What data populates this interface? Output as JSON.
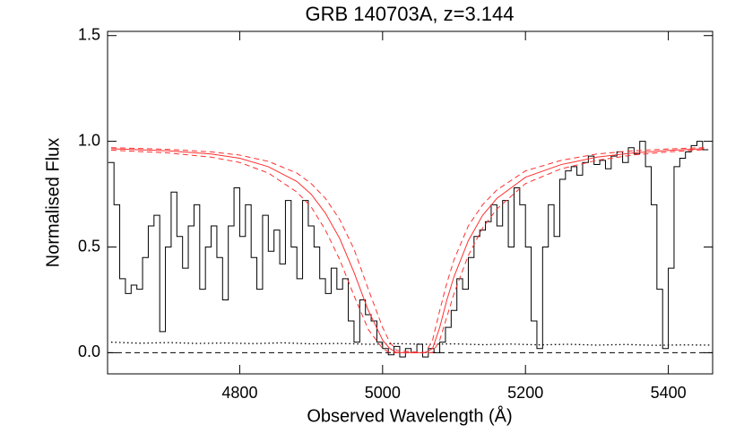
{
  "chart_data": {
    "type": "line",
    "title": "GRB 140703A, z=3.144",
    "x_label": "Observed Wavelength (Å)",
    "y_label": "Normalised Flux",
    "xlim": [
      4615,
      5462
    ],
    "ylim": [
      -0.1,
      1.52
    ],
    "xticks": [
      4800,
      5000,
      5200,
      5400
    ],
    "yticks": [
      {
        "value": 0,
        "label": "0.0"
      },
      0.5,
      {
        "value": 1,
        "label": "1.0"
      },
      1.5
    ],
    "reference_line": {
      "value": 0,
      "style": "dashed",
      "color": "#000000"
    },
    "series": [
      {
        "style": "step",
        "color": "#000000",
        "x": [
          4620,
          4628,
          4636,
          4644,
          4652,
          4660,
          4668,
          4676,
          4684,
          4692,
          4700,
          4708,
          4716,
          4724,
          4732,
          4740,
          4748,
          4756,
          4764,
          4772,
          4780,
          4788,
          4796,
          4804,
          4812,
          4820,
          4828,
          4836,
          4844,
          4852,
          4860,
          4868,
          4876,
          4884,
          4892,
          4900,
          4908,
          4916,
          4924,
          4932,
          4940,
          4948,
          4956,
          4964,
          4972,
          4980,
          4988,
          4996,
          5004,
          5012,
          5020,
          5028,
          5036,
          5044,
          5052,
          5060,
          5068,
          5076,
          5084,
          5092,
          5100,
          5108,
          5116,
          5124,
          5132,
          5140,
          5148,
          5156,
          5164,
          5172,
          5180,
          5188,
          5196,
          5204,
          5212,
          5220,
          5228,
          5236,
          5244,
          5252,
          5260,
          5268,
          5276,
          5284,
          5292,
          5300,
          5308,
          5316,
          5324,
          5332,
          5340,
          5348,
          5356,
          5364,
          5372,
          5380,
          5388,
          5396,
          5404,
          5412,
          5420,
          5428,
          5436,
          5444,
          5452
        ],
        "values": [
          0.9,
          0.7,
          0.35,
          0.28,
          0.32,
          0.3,
          0.45,
          0.6,
          0.65,
          0.1,
          0.5,
          0.76,
          0.55,
          0.4,
          0.6,
          0.7,
          0.3,
          0.5,
          0.6,
          0.45,
          0.25,
          0.6,
          0.78,
          0.55,
          0.7,
          0.45,
          0.3,
          0.65,
          0.48,
          0.58,
          0.42,
          0.72,
          0.5,
          0.35,
          0.72,
          0.6,
          0.5,
          0.35,
          0.28,
          0.4,
          0.3,
          0.35,
          0.15,
          0.05,
          0.25,
          0.18,
          0.15,
          0.05,
          0.02,
          -0.01,
          0.03,
          -0.02,
          0.02,
          0.0,
          0.04,
          -0.02,
          0.02,
          0.0,
          0.05,
          0.12,
          0.2,
          0.35,
          0.3,
          0.45,
          0.55,
          0.58,
          0.62,
          0.7,
          0.6,
          0.72,
          0.5,
          0.78,
          0.7,
          0.5,
          0.15,
          0.02,
          0.5,
          0.7,
          0.55,
          0.82,
          0.86,
          0.88,
          0.84,
          0.9,
          0.93,
          0.89,
          0.91,
          0.87,
          0.93,
          0.95,
          0.9,
          0.97,
          0.94,
          1.0,
          0.88,
          0.7,
          0.3,
          0.02,
          0.4,
          0.88,
          0.92,
          0.95,
          0.98,
          1.0,
          0.96
        ]
      },
      {
        "style": "dotted",
        "color": "#000000",
        "x": [
          4620,
          4660,
          4700,
          4740,
          4780,
          4820,
          4860,
          4900,
          4940,
          4980,
          5020,
          5060,
          5100,
          5140,
          5180,
          5220,
          5260,
          5300,
          5340,
          5380,
          5420,
          5460
        ],
        "values": [
          0.05,
          0.045,
          0.048,
          0.044,
          0.046,
          0.043,
          0.047,
          0.042,
          0.044,
          0.04,
          0.043,
          0.04,
          0.042,
          0.038,
          0.041,
          0.037,
          0.04,
          0.036,
          0.039,
          0.035,
          0.037,
          0.036
        ]
      },
      {
        "style": "solid",
        "color": "#ff3030",
        "x": [
          4620,
          4700,
          4760,
          4800,
          4840,
          4880,
          4900,
          4920,
          4940,
          4960,
          4980,
          5000,
          5010,
          5020,
          5060,
          5070,
          5080,
          5090,
          5100,
          5120,
          5140,
          5160,
          5200,
          5250,
          5300,
          5350,
          5400,
          5450
        ],
        "values": [
          0.965,
          0.955,
          0.94,
          0.92,
          0.88,
          0.81,
          0.75,
          0.66,
          0.54,
          0.38,
          0.2,
          0.06,
          0.02,
          0,
          0,
          0.02,
          0.12,
          0.25,
          0.36,
          0.53,
          0.65,
          0.73,
          0.83,
          0.89,
          0.925,
          0.945,
          0.957,
          0.965
        ]
      },
      {
        "style": "dashed",
        "color": "#ff3030",
        "x": [
          4620,
          4700,
          4760,
          4800,
          4840,
          4880,
          4900,
          4920,
          4940,
          4960,
          4980,
          5000,
          5010,
          5020,
          5060,
          5070,
          5080,
          5090,
          5100,
          5120,
          5140,
          5160,
          5200,
          5250,
          5300,
          5350,
          5400,
          5450
        ],
        "values": [
          0.97,
          0.962,
          0.95,
          0.935,
          0.905,
          0.85,
          0.8,
          0.73,
          0.63,
          0.49,
          0.3,
          0.12,
          0.05,
          0.01,
          0,
          0.06,
          0.2,
          0.33,
          0.44,
          0.6,
          0.7,
          0.77,
          0.86,
          0.91,
          0.94,
          0.955,
          0.964,
          0.97
        ]
      },
      {
        "style": "dashed",
        "color": "#ff3030",
        "x": [
          4620,
          4700,
          4760,
          4800,
          4840,
          4880,
          4900,
          4920,
          4940,
          4960,
          4980,
          5000,
          5010,
          5020,
          5060,
          5070,
          5080,
          5090,
          5100,
          5120,
          5140,
          5160,
          5200,
          5250,
          5300,
          5350,
          5400,
          5450
        ],
        "values": [
          0.958,
          0.945,
          0.925,
          0.9,
          0.85,
          0.76,
          0.69,
          0.58,
          0.44,
          0.27,
          0.11,
          0.02,
          0,
          0,
          0,
          0,
          0.06,
          0.17,
          0.28,
          0.46,
          0.59,
          0.68,
          0.8,
          0.87,
          0.91,
          0.935,
          0.95,
          0.96
        ]
      }
    ]
  }
}
